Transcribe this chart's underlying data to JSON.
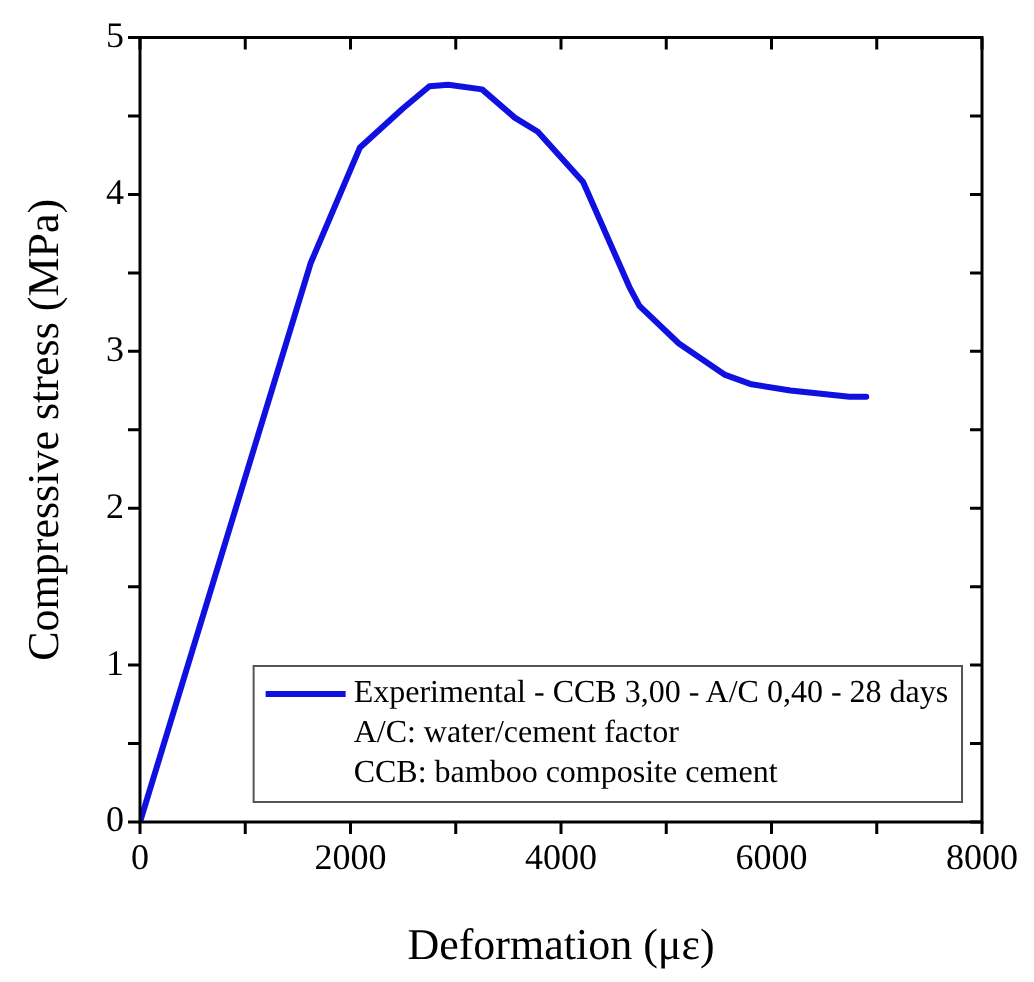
{
  "chart_data": {
    "type": "line",
    "xlabel": "Deformation (με)",
    "ylabel": "Compressive stress (MPa)",
    "x": [
      0,
      1620,
      2090,
      2500,
      2750,
      2930,
      3250,
      3560,
      3780,
      4210,
      4650,
      4745,
      5120,
      5560,
      5810,
      6180,
      6740,
      6900
    ],
    "series": [
      {
        "name": "Experimental - CCB 3,00 - A/C 0,40 - 28 days",
        "color": "#1010e0",
        "values": [
          0,
          3.56,
          4.3,
          4.55,
          4.69,
          4.7,
          4.67,
          4.49,
          4.4,
          4.08,
          3.41,
          3.29,
          3.05,
          2.85,
          2.79,
          2.75,
          2.71,
          2.71
        ]
      }
    ],
    "xlim": [
      0,
      8000
    ],
    "ylim": [
      0,
      5
    ],
    "xticks": [
      0,
      {
        "value": 1000,
        "label": null
      },
      2000,
      {
        "value": 3000,
        "label": null
      },
      4000,
      {
        "value": 5000,
        "label": null
      },
      6000,
      {
        "value": 7000,
        "label": null
      },
      8000
    ],
    "yticks": [
      0,
      {
        "value": 0.5,
        "label": null
      },
      1,
      {
        "value": 1.5,
        "label": null
      },
      2,
      {
        "value": 2.5,
        "label": null
      },
      3,
      {
        "value": 3.5,
        "label": null
      },
      4,
      {
        "value": 4.5,
        "label": null
      },
      5
    ],
    "annotations": [
      "A/C: water/cement factor",
      "CCB: bamboo composite cement"
    ],
    "legend": "bottom right",
    "grid": false,
    "marker": "none",
    "line_style": "solid"
  }
}
